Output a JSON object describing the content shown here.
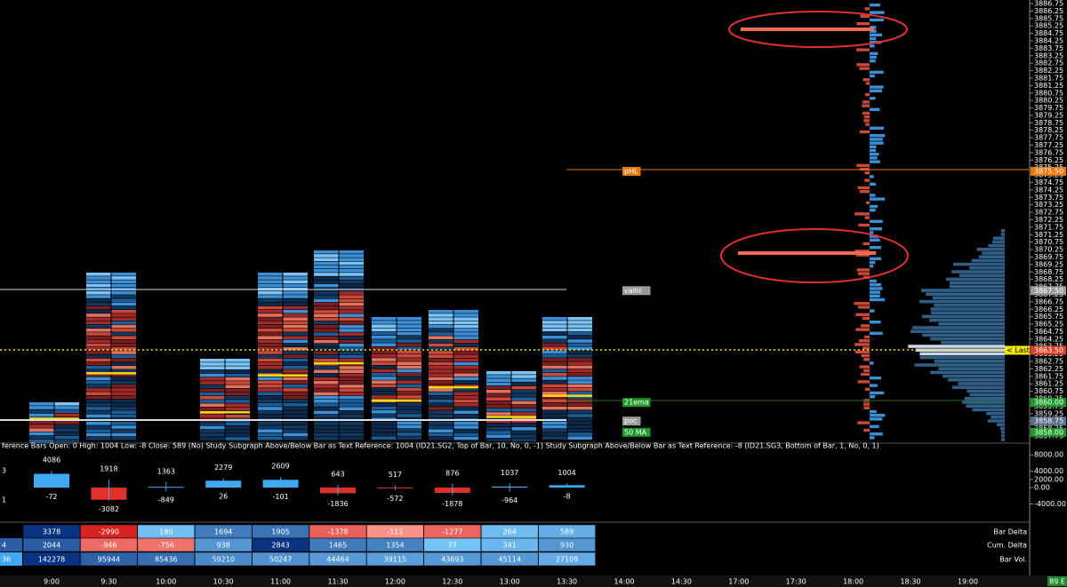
{
  "price_axis": {
    "ylim": [
      3857.75,
      3886.75
    ],
    "ticks": [
      3886.75,
      3886.25,
      3885.75,
      3885.25,
      3884.75,
      3884.25,
      3883.75,
      3883.25,
      3882.75,
      3882.25,
      3881.75,
      3881.25,
      3880.75,
      3880.25,
      3879.75,
      3879.25,
      3878.75,
      3878.25,
      3877.75,
      3877.25,
      3876.75,
      3876.25,
      3875.75,
      3875.25,
      3874.75,
      3874.25,
      3873.75,
      3873.25,
      3872.75,
      3872.25,
      3871.75,
      3871.25,
      3870.75,
      3870.25,
      3869.75,
      3869.25,
      3868.75,
      3868.25,
      3867.75,
      3867.25,
      3866.75,
      3866.25,
      3865.75,
      3865.25,
      3864.75,
      3864.25,
      3863.75,
      3863.25,
      3862.75,
      3862.25,
      3861.75,
      3861.25,
      3860.75,
      3860.25,
      3859.75,
      3859.25,
      3858.75,
      3858.25,
      3857.75
    ]
  },
  "price_markers": [
    {
      "value": 3875.5,
      "label": "3875.50",
      "color": "#e8780f"
    },
    {
      "value": 3867.5,
      "label": "3867.50",
      "color": "#9a9a9a"
    },
    {
      "value": 3863.5,
      "label": "3863.50",
      "color": "#e0402a"
    },
    {
      "value": 3860,
      "label": "3860.00",
      "color": "#1f9a2a"
    },
    {
      "value": 3858.75,
      "label": "3858.75",
      "color": "#5a6f8a"
    },
    {
      "value": 3858,
      "label": "3858.00",
      "color": "#1f9a2a"
    }
  ],
  "chart_labels": [
    {
      "text": "pHL",
      "price": 3875.5,
      "color": "#e8780f"
    },
    {
      "text": "valhi",
      "price": 3867.5,
      "color": "#9a9a9a"
    },
    {
      "text": "21ema",
      "price": 3860,
      "color": "#1f9a2a"
    },
    {
      "text": "poc",
      "price": 3858.75,
      "color": "#9a9a9a"
    },
    {
      "text": "50 MA",
      "price": 3858,
      "color": "#1f9a2a"
    }
  ],
  "last_label": "< Last",
  "study_text": "ference Bars Open: 0 High: 1004 Low: -8 Close: 589  (No)  Study Subgraph Above/Below Bar as Text  Reference: 1004  (ID21.SG2, Top of Bar, 10, No, 0, -1)  Study Subgraph Above/Below Bar as Text  Reference: -8  (ID21.SG3, Bottom of Bar, 1, No, 0, 1)",
  "delta_panel": {
    "ylim": [
      -7800,
      10000
    ],
    "yticks": [
      {
        "value": 8000,
        "label": "8000.00"
      },
      {
        "value": 4000,
        "label": "4000.00"
      },
      {
        "value": 2000,
        "label": "2000.00"
      },
      {
        "value": 0,
        "label": "0.00"
      },
      {
        "value": -4000,
        "label": "-4000.00"
      }
    ],
    "partial_column": [
      "3",
      "1"
    ],
    "close": [
      3378,
      -2990,
      190,
      1694,
      1905,
      -1378,
      -111,
      -1277,
      264,
      589
    ],
    "high": [
      4086,
      1918,
      1363,
      2279,
      2609,
      643,
      517,
      876,
      1037,
      1004
    ],
    "low": [
      -72,
      -3082,
      -849,
      26,
      -101,
      -1836,
      -572,
      -1878,
      -964,
      -8
    ]
  },
  "table": {
    "row_labels": [
      "Bar Delta",
      "Cum. Delta",
      "Bar Vol."
    ],
    "partial_column": [
      null,
      "4",
      "36"
    ],
    "rows": [
      [
        3378,
        -2990,
        190,
        1694,
        1905,
        -1378,
        -111,
        -1277,
        264,
        589
      ],
      [
        2044,
        -946,
        -756,
        938,
        2843,
        1465,
        1354,
        77,
        341,
        930
      ],
      [
        142278,
        95944,
        85436,
        59210,
        50247,
        44464,
        39115,
        43693,
        45114,
        27109
      ]
    ]
  },
  "time_axis": [
    "9:00",
    "9:30",
    "10:00",
    "10:30",
    "11:00",
    "11:30",
    "12:00",
    "12:30",
    "13:00",
    "13:30",
    "14:00",
    "14:30",
    "17:00",
    "17:30",
    "18:00",
    "18:30",
    "19:00"
  ],
  "status": "89 E"
}
